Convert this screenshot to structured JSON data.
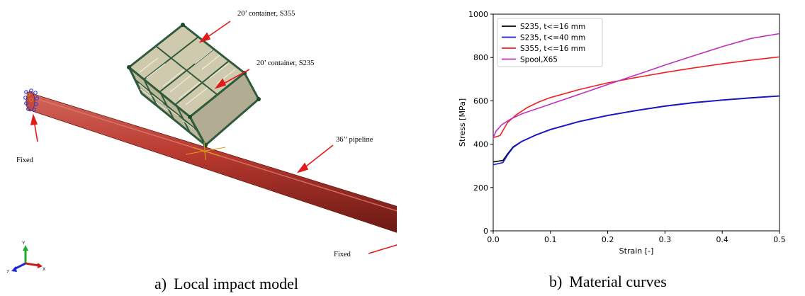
{
  "panel_a": {
    "caption_prefix": "a)",
    "caption": "Local impact model",
    "labels": {
      "container_s355": "20’ container, S355",
      "container_s235": "20’ container, S235",
      "pipeline": "36’’ pipeline",
      "fixed_left": "Fixed",
      "fixed_right": "Fixed"
    },
    "triad": {
      "y": "Y",
      "z": "Z",
      "x": "X"
    },
    "colors": {
      "pipe": "#b8392f",
      "pipe_dark": "#7f211b",
      "pipe_light": "#d9675c",
      "frame": "#2f5a3c",
      "panel": "#c9c4a6",
      "arrow": "#e11a1a",
      "bc": "#3340d8"
    }
  },
  "panel_b": {
    "caption_prefix": "b)",
    "caption": "Material curves"
  },
  "chart_data": {
    "type": "line",
    "title": "",
    "xlabel": "Strain [-]",
    "ylabel": "Stress [MPa]",
    "xlim": [
      0,
      0.5
    ],
    "ylim": [
      0,
      1000
    ],
    "xticks": [
      0.0,
      0.1,
      0.2,
      0.3,
      0.4,
      0.5
    ],
    "xtick_labels": [
      "0.0",
      "0.1",
      "0.2",
      "0.3",
      "0.4",
      "0.5"
    ],
    "yticks": [
      0,
      200,
      400,
      600,
      800,
      1000
    ],
    "ytick_labels": [
      "0",
      "200",
      "400",
      "600",
      "800",
      "1000"
    ],
    "grid": false,
    "legend_position": "top-left",
    "series": [
      {
        "name": "S235, t<=16 mm",
        "color": "#000000",
        "points": [
          [
            0,
            318
          ],
          [
            0.017,
            325
          ],
          [
            0.025,
            355
          ],
          [
            0.035,
            388
          ],
          [
            0.05,
            413
          ],
          [
            0.075,
            443
          ],
          [
            0.1,
            468
          ],
          [
            0.15,
            505
          ],
          [
            0.2,
            533
          ],
          [
            0.25,
            556
          ],
          [
            0.3,
            576
          ],
          [
            0.35,
            592
          ],
          [
            0.4,
            604
          ],
          [
            0.45,
            614
          ],
          [
            0.5,
            623
          ]
        ]
      },
      {
        "name": "S235, t<=40 mm",
        "color": "#1515e6",
        "points": [
          [
            0,
            305
          ],
          [
            0.017,
            315
          ],
          [
            0.025,
            350
          ],
          [
            0.035,
            385
          ],
          [
            0.05,
            412
          ],
          [
            0.075,
            442
          ],
          [
            0.1,
            467
          ],
          [
            0.15,
            504
          ],
          [
            0.2,
            532
          ],
          [
            0.25,
            555
          ],
          [
            0.3,
            575
          ],
          [
            0.35,
            591
          ],
          [
            0.4,
            603
          ],
          [
            0.45,
            613
          ],
          [
            0.5,
            622
          ]
        ]
      },
      {
        "name": "S355, t<=16 mm",
        "color": "#f02020",
        "points": [
          [
            0,
            430
          ],
          [
            0.012,
            440
          ],
          [
            0.025,
            500
          ],
          [
            0.04,
            535
          ],
          [
            0.06,
            570
          ],
          [
            0.08,
            595
          ],
          [
            0.1,
            615
          ],
          [
            0.15,
            652
          ],
          [
            0.2,
            683
          ],
          [
            0.25,
            708
          ],
          [
            0.3,
            731
          ],
          [
            0.35,
            752
          ],
          [
            0.4,
            771
          ],
          [
            0.45,
            788
          ],
          [
            0.5,
            803
          ]
        ]
      },
      {
        "name": "Spool,X65",
        "color": "#bf2fbf",
        "points": [
          [
            0,
            430
          ],
          [
            0.005,
            460
          ],
          [
            0.015,
            490
          ],
          [
            0.03,
            515
          ],
          [
            0.05,
            540
          ],
          [
            0.1,
            585
          ],
          [
            0.15,
            630
          ],
          [
            0.2,
            675
          ],
          [
            0.25,
            720
          ],
          [
            0.3,
            765
          ],
          [
            0.35,
            808
          ],
          [
            0.4,
            850
          ],
          [
            0.45,
            888
          ],
          [
            0.5,
            910
          ]
        ]
      }
    ]
  }
}
